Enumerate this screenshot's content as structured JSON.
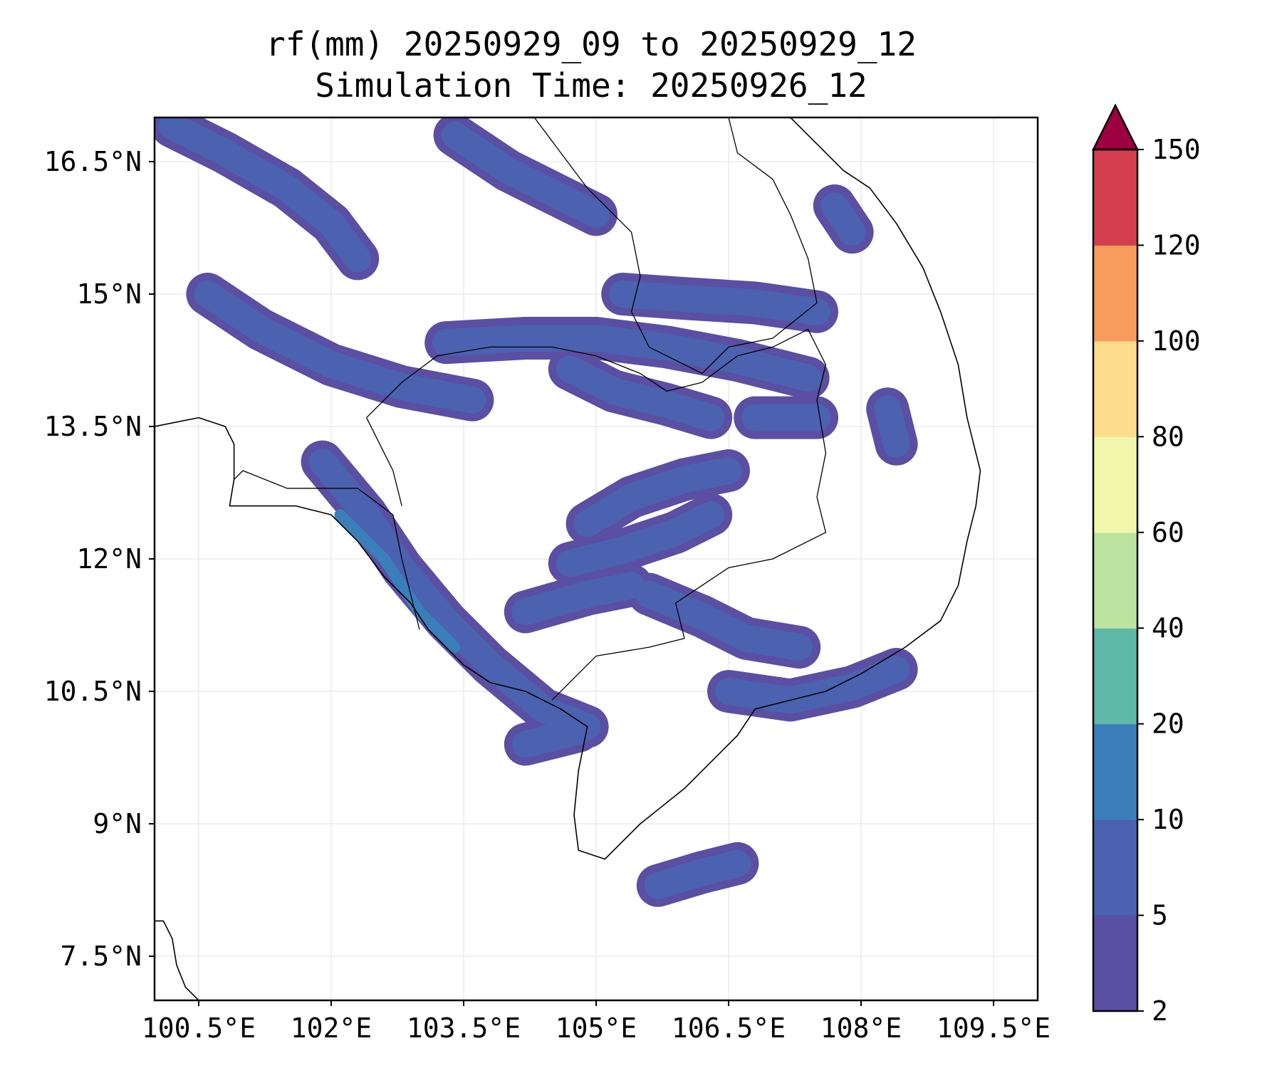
{
  "chart_data": {
    "type": "heatmap",
    "title": "rf(mm) 20250929_09 to 20250929_12",
    "subtitle": "Simulation Time: 20250926_12",
    "xlabel": "",
    "ylabel": "",
    "xlim": [
      100.0,
      110.0
    ],
    "ylim": [
      7.0,
      17.0
    ],
    "grid": true,
    "x_ticks": [
      {
        "value": 100.5,
        "label": "100.5°E"
      },
      {
        "value": 102.0,
        "label": "102°E"
      },
      {
        "value": 103.5,
        "label": "103.5°E"
      },
      {
        "value": 105.0,
        "label": "105°E"
      },
      {
        "value": 106.5,
        "label": "106.5°E"
      },
      {
        "value": 108.0,
        "label": "108°E"
      },
      {
        "value": 109.5,
        "label": "109.5°E"
      }
    ],
    "y_ticks": [
      {
        "value": 16.5,
        "label": "16.5°N"
      },
      {
        "value": 15.0,
        "label": "15°N"
      },
      {
        "value": 13.5,
        "label": "13.5°N"
      },
      {
        "value": 12.0,
        "label": "12°N"
      },
      {
        "value": 10.5,
        "label": "10.5°N"
      },
      {
        "value": 9.0,
        "label": "9°N"
      },
      {
        "value": 7.5,
        "label": "7.5°N"
      }
    ],
    "colorbar": {
      "levels": [
        2,
        5,
        10,
        20,
        40,
        60,
        80,
        100,
        120,
        150
      ],
      "labels": [
        "2",
        "5",
        "10",
        "20",
        "40",
        "60",
        "80",
        "100",
        "120",
        "150"
      ],
      "colors": [
        "#5a4fa2",
        "#4b62b0",
        "#3a7fba",
        "#5fb8a8",
        "#bce3a0",
        "#f1f8ae",
        "#fbdd8c",
        "#f79c5c",
        "#d53e4f"
      ],
      "extend_color": "#9e0142"
    },
    "rain_bands": [
      {
        "level": 1,
        "points": [
          [
            100.2,
            16.9
          ],
          [
            100.8,
            16.6
          ],
          [
            101.5,
            16.2
          ],
          [
            102.0,
            15.8
          ],
          [
            102.3,
            15.4
          ]
        ]
      },
      {
        "level": 1,
        "points": [
          [
            100.6,
            15.0
          ],
          [
            101.2,
            14.6
          ],
          [
            102.0,
            14.2
          ],
          [
            102.8,
            13.95
          ],
          [
            103.6,
            13.8
          ]
        ]
      },
      {
        "level": 1,
        "points": [
          [
            103.3,
            14.45
          ],
          [
            104.2,
            14.5
          ],
          [
            105.0,
            14.5
          ],
          [
            105.8,
            14.4
          ],
          [
            106.6,
            14.25
          ],
          [
            107.4,
            14.05
          ]
        ]
      },
      {
        "level": 1,
        "points": [
          [
            105.3,
            15.0
          ],
          [
            106.0,
            14.95
          ],
          [
            106.8,
            14.9
          ],
          [
            107.5,
            14.8
          ]
        ]
      },
      {
        "level": 1,
        "points": [
          [
            103.4,
            16.8
          ],
          [
            104.0,
            16.4
          ],
          [
            104.6,
            16.1
          ],
          [
            105.0,
            15.9
          ]
        ]
      },
      {
        "level": 1,
        "points": [
          [
            104.7,
            14.15
          ],
          [
            105.2,
            13.9
          ],
          [
            105.8,
            13.75
          ],
          [
            106.3,
            13.6
          ]
        ]
      },
      {
        "level": 1,
        "points": [
          [
            106.8,
            13.6
          ],
          [
            107.5,
            13.6
          ]
        ]
      },
      {
        "level": 1,
        "points": [
          [
            101.9,
            13.1
          ],
          [
            102.4,
            12.5
          ],
          [
            102.8,
            11.9
          ],
          [
            103.3,
            11.3
          ],
          [
            103.8,
            10.8
          ],
          [
            104.4,
            10.3
          ],
          [
            104.9,
            10.1
          ]
        ]
      },
      {
        "level": 2,
        "points": [
          [
            102.1,
            12.5
          ],
          [
            102.6,
            12.0
          ],
          [
            103.0,
            11.4
          ],
          [
            103.4,
            11.0
          ]
        ]
      },
      {
        "level": 1,
        "points": [
          [
            104.9,
            12.4
          ],
          [
            105.4,
            12.7
          ],
          [
            106.0,
            12.9
          ],
          [
            106.5,
            13.0
          ]
        ]
      },
      {
        "level": 1,
        "points": [
          [
            104.7,
            11.95
          ],
          [
            105.3,
            12.1
          ],
          [
            105.9,
            12.3
          ],
          [
            106.3,
            12.5
          ]
        ]
      },
      {
        "level": 1,
        "points": [
          [
            104.2,
            11.4
          ],
          [
            104.9,
            11.6
          ],
          [
            105.4,
            11.7
          ]
        ]
      },
      {
        "level": 1,
        "points": [
          [
            105.6,
            11.6
          ],
          [
            106.2,
            11.35
          ],
          [
            106.7,
            11.1
          ],
          [
            107.3,
            11.0
          ]
        ]
      },
      {
        "level": 1,
        "points": [
          [
            106.5,
            10.5
          ],
          [
            107.2,
            10.4
          ],
          [
            107.9,
            10.55
          ],
          [
            108.4,
            10.75
          ]
        ]
      },
      {
        "level": 1,
        "points": [
          [
            104.2,
            9.9
          ],
          [
            104.8,
            10.05
          ]
        ]
      },
      {
        "level": 1,
        "points": [
          [
            105.7,
            8.3
          ],
          [
            106.2,
            8.45
          ],
          [
            106.6,
            8.55
          ]
        ]
      },
      {
        "level": 1,
        "points": [
          [
            107.7,
            16.0
          ],
          [
            107.9,
            15.7
          ]
        ]
      },
      {
        "level": 1,
        "points": [
          [
            108.3,
            13.7
          ],
          [
            108.4,
            13.3
          ]
        ]
      }
    ],
    "coastline": [
      [
        [
          100.0,
          13.5
        ],
        [
          100.5,
          13.6
        ],
        [
          100.8,
          13.5
        ],
        [
          100.9,
          13.3
        ],
        [
          100.9,
          12.9
        ],
        [
          100.85,
          12.6
        ],
        [
          101.2,
          12.6
        ],
        [
          101.6,
          12.6
        ],
        [
          102.0,
          12.5
        ],
        [
          102.3,
          12.2
        ],
        [
          102.6,
          11.8
        ],
        [
          102.9,
          11.5
        ],
        [
          103.1,
          11.2
        ],
        [
          103.5,
          10.8
        ],
        [
          103.8,
          10.6
        ],
        [
          104.2,
          10.5
        ],
        [
          104.6,
          10.3
        ],
        [
          104.9,
          10.1
        ],
        [
          104.8,
          9.6
        ],
        [
          104.75,
          9.1
        ],
        [
          104.8,
          8.7
        ],
        [
          105.1,
          8.6
        ],
        [
          105.5,
          9.0
        ],
        [
          106.0,
          9.4
        ],
        [
          106.3,
          9.7
        ],
        [
          106.6,
          10.0
        ],
        [
          106.8,
          10.3
        ],
        [
          107.2,
          10.4
        ],
        [
          107.6,
          10.5
        ],
        [
          108.0,
          10.7
        ],
        [
          108.5,
          11.0
        ],
        [
          108.9,
          11.3
        ],
        [
          109.1,
          11.7
        ],
        [
          109.2,
          12.2
        ],
        [
          109.3,
          12.6
        ],
        [
          109.35,
          13.0
        ],
        [
          109.2,
          13.6
        ],
        [
          109.1,
          14.2
        ],
        [
          108.9,
          14.8
        ],
        [
          108.7,
          15.3
        ],
        [
          108.4,
          15.8
        ],
        [
          108.1,
          16.2
        ],
        [
          107.8,
          16.4
        ],
        [
          107.5,
          16.7
        ],
        [
          107.2,
          17.0
        ]
      ],
      [
        [
          100.0,
          7.9
        ],
        [
          100.1,
          7.9
        ],
        [
          100.2,
          7.7
        ],
        [
          100.25,
          7.4
        ],
        [
          100.35,
          7.15
        ],
        [
          100.5,
          7.0
        ]
      ]
    ],
    "borders": [
      [
        [
          100.9,
          12.9
        ],
        [
          101.0,
          13.0
        ],
        [
          101.5,
          12.8
        ],
        [
          102.3,
          12.8
        ],
        [
          102.7,
          12.5
        ],
        [
          102.8,
          12.0
        ],
        [
          102.9,
          11.6
        ],
        [
          103.0,
          11.2
        ]
      ],
      [
        [
          102.4,
          13.6
        ],
        [
          102.8,
          14.0
        ],
        [
          103.2,
          14.3
        ],
        [
          103.8,
          14.4
        ],
        [
          104.5,
          14.4
        ],
        [
          105.0,
          14.3
        ],
        [
          105.5,
          14.1
        ],
        [
          105.8,
          13.9
        ],
        [
          106.2,
          14.0
        ],
        [
          106.6,
          14.3
        ],
        [
          107.0,
          14.4
        ],
        [
          107.4,
          14.6
        ],
        [
          107.6,
          14.2
        ],
        [
          107.5,
          13.8
        ],
        [
          107.6,
          13.2
        ],
        [
          107.5,
          12.7
        ],
        [
          107.6,
          12.3
        ],
        [
          107.0,
          12.0
        ],
        [
          106.5,
          11.9
        ],
        [
          106.2,
          11.7
        ],
        [
          105.9,
          11.5
        ],
        [
          106.0,
          11.1
        ],
        [
          105.6,
          11.0
        ],
        [
          105.0,
          10.9
        ],
        [
          104.7,
          10.6
        ],
        [
          104.5,
          10.4
        ]
      ],
      [
        [
          104.3,
          17.0
        ],
        [
          104.6,
          16.6
        ],
        [
          104.9,
          16.2
        ],
        [
          105.4,
          15.7
        ],
        [
          105.5,
          15.2
        ],
        [
          105.4,
          14.8
        ],
        [
          105.6,
          14.4
        ],
        [
          106.2,
          14.1
        ],
        [
          106.5,
          14.4
        ],
        [
          107.0,
          14.5
        ],
        [
          107.5,
          14.9
        ],
        [
          107.4,
          15.4
        ],
        [
          107.2,
          15.9
        ],
        [
          107.0,
          16.3
        ],
        [
          106.6,
          16.6
        ],
        [
          106.5,
          17.0
        ]
      ],
      [
        [
          102.4,
          13.6
        ],
        [
          102.7,
          13.0
        ],
        [
          102.8,
          12.6
        ]
      ]
    ]
  }
}
